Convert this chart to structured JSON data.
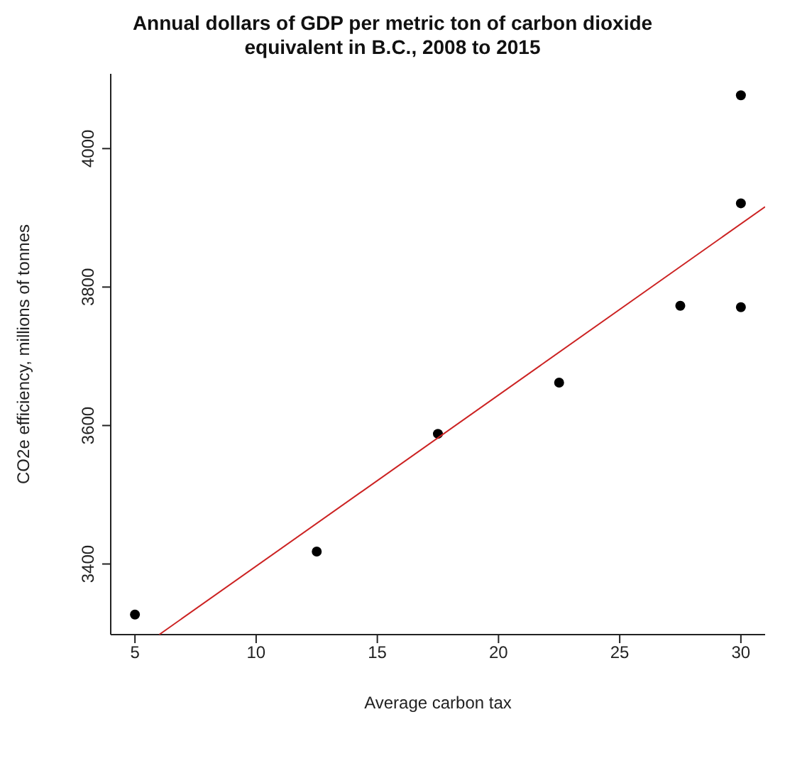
{
  "chart_data": {
    "type": "scatter",
    "title": "Annual dollars of GDP per metric ton of carbon dioxide equivalent in B.C., 2008 to 2015",
    "xlabel": "Average carbon tax",
    "ylabel": "CO2e efficiency, millions of tonnes",
    "grid": false,
    "marker": "circle",
    "series": [
      {
        "color": "#000000",
        "x": [
          5,
          12.5,
          17.5,
          22.5,
          27.5,
          30,
          30,
          30
        ],
        "values": [
          3327,
          3418,
          3588,
          3662,
          3773,
          3771,
          3921,
          4077
        ]
      },
      {
        "type": "line",
        "color": "#cc2222",
        "marker": "none",
        "x": [
          6,
          31
        ],
        "values": [
          3298,
          3916
        ]
      }
    ],
    "xlim": [
      4,
      31
    ],
    "ylim": [
      3298,
      4108
    ],
    "xticks": [
      5,
      10,
      15,
      20,
      25,
      30
    ],
    "yticks": [
      3400,
      3600,
      3800,
      4000
    ]
  }
}
